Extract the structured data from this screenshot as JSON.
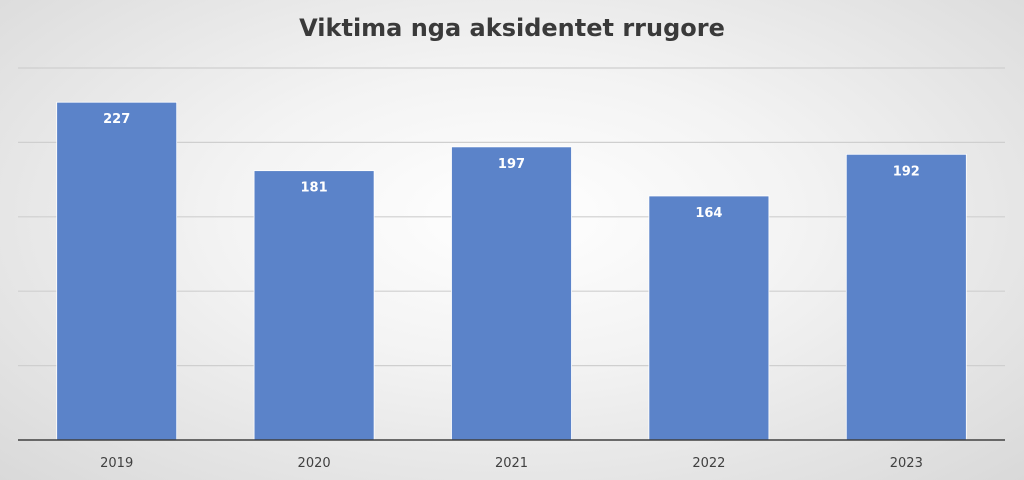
{
  "chart_data": {
    "type": "bar",
    "title": "Viktima nga aksidentet rrugore",
    "categories": [
      "2019",
      "2020",
      "2021",
      "2022",
      "2023"
    ],
    "values": [
      227,
      181,
      197,
      164,
      192
    ],
    "xlabel": "",
    "ylabel": "",
    "ylim": [
      0,
      250
    ],
    "grid": true,
    "gridlines": [
      50,
      100,
      150,
      200,
      250
    ],
    "data_labels": true,
    "legend": "none",
    "bar_color": "#5b83c9"
  }
}
